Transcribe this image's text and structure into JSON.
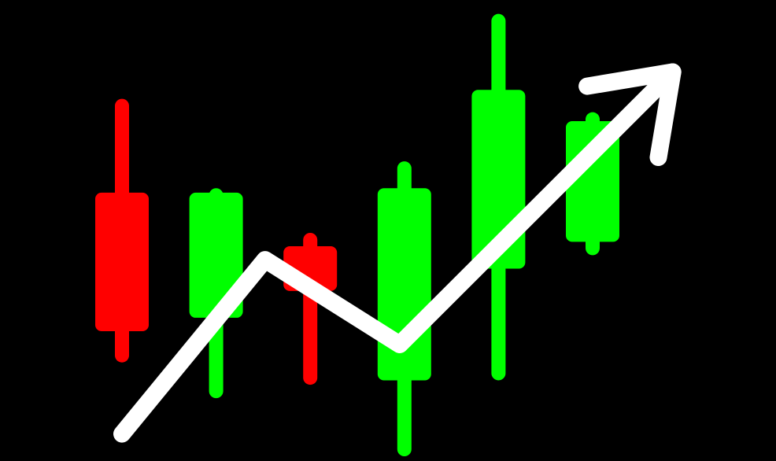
{
  "chart_data": {
    "type": "candlestick",
    "colors": {
      "background": "#000000",
      "up": "#00ff00",
      "down": "#ff0000",
      "trend": "#ffffff"
    },
    "candles": [
      {
        "open": 0.59,
        "high": 0.8,
        "low": 0.21,
        "close": 0.28,
        "direction": "down"
      },
      {
        "open": 0.31,
        "high": 0.6,
        "low": 0.13,
        "close": 0.59,
        "direction": "up"
      },
      {
        "open": 0.47,
        "high": 0.5,
        "low": 0.16,
        "close": 0.37,
        "direction": "down"
      },
      {
        "open": 0.17,
        "high": 0.66,
        "low": 0.0,
        "close": 0.6,
        "direction": "up"
      },
      {
        "open": 0.42,
        "high": 0.99,
        "low": 0.17,
        "close": 0.82,
        "direction": "up"
      },
      {
        "open": 0.48,
        "high": 0.77,
        "low": 0.45,
        "close": 0.75,
        "direction": "up"
      }
    ],
    "trend_line": {
      "points": [
        {
          "x": 0.0,
          "y": 0.05
        },
        {
          "x": 1.52,
          "y": 0.44
        },
        {
          "x": 2.95,
          "y": 0.25
        },
        {
          "x": 5.85,
          "y": 0.86
        }
      ],
      "arrow": "end",
      "direction": "up"
    },
    "title": "",
    "xlabel": "",
    "ylabel": "",
    "grid": false,
    "legend": "none",
    "axes_visible": false
  }
}
